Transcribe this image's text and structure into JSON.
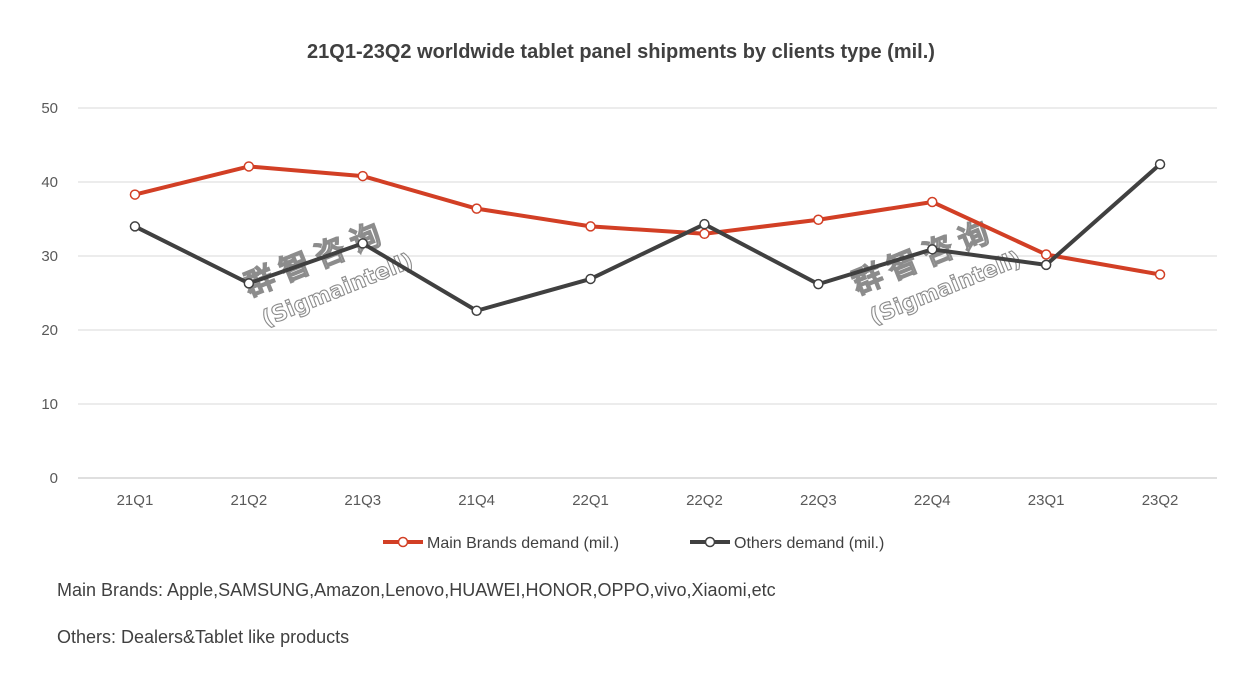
{
  "chart_data": {
    "type": "line",
    "title": "21Q1-23Q2 worldwide tablet panel shipments by clients type (mil.)",
    "xlabel": "",
    "ylabel": "",
    "categories": [
      "21Q1",
      "21Q2",
      "21Q3",
      "21Q4",
      "22Q1",
      "22Q2",
      "22Q3",
      "22Q4",
      "23Q1",
      "23Q2"
    ],
    "ylim": [
      0,
      50
    ],
    "yticks": [
      0,
      10,
      20,
      30,
      40,
      50
    ],
    "grid": true,
    "legend_position": "bottom",
    "series": [
      {
        "name": "Main Brands demand (mil.)",
        "color": "#d23f25",
        "marker": "hollow-circle",
        "values": [
          38.3,
          42.1,
          40.8,
          36.4,
          34.0,
          33.0,
          34.9,
          37.3,
          30.2,
          27.5
        ]
      },
      {
        "name": "Others demand (mil.)",
        "color": "#404040",
        "marker": "hollow-circle",
        "values": [
          34.0,
          26.3,
          31.7,
          22.6,
          26.9,
          34.3,
          26.2,
          30.9,
          28.8,
          42.4
        ]
      }
    ]
  },
  "watermark": {
    "chinese": "群智咨询",
    "english": "(Sigmaintell)"
  },
  "notes": {
    "main_brands": "Main Brands: Apple,SAMSUNG,Amazon,Lenovo,HUAWEI,HONOR,OPPO,vivo,Xiaomi,etc",
    "others": "Others: Dealers&Tablet like products"
  },
  "colors": {
    "grid": "#d9d9d9",
    "axis": "#bfbfbf",
    "text": "#595959"
  }
}
